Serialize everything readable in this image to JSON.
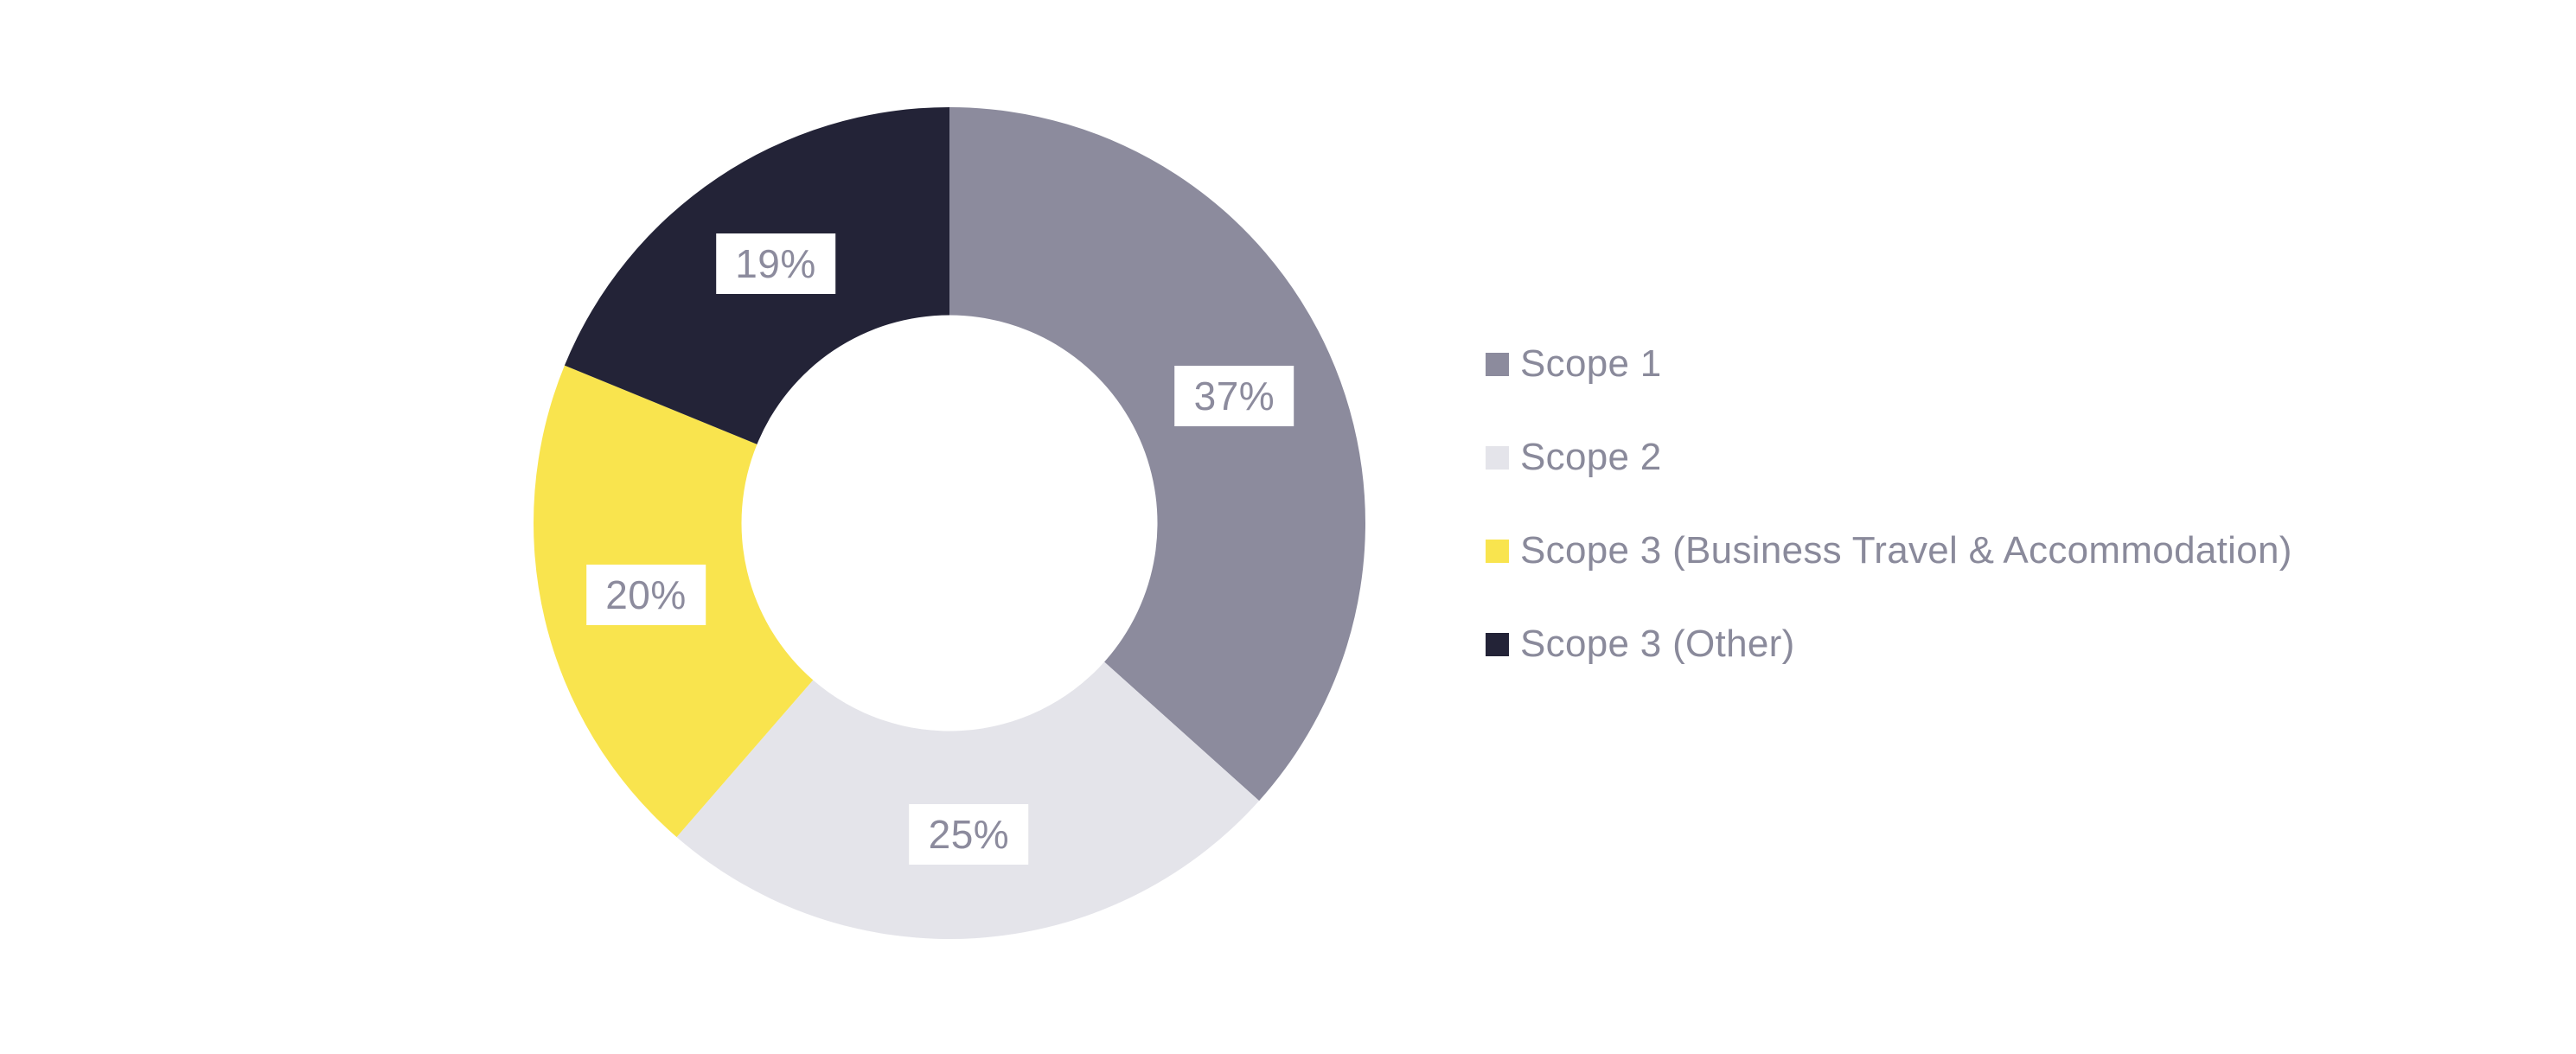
{
  "page": {
    "background_color": "#ffffff"
  },
  "chart_data": {
    "type": "pie",
    "variant": "donut",
    "title": "",
    "series": [
      {
        "label": "Scope 1",
        "value": 37,
        "display": "37%",
        "color": "#8C8B9D"
      },
      {
        "label": "Scope 2",
        "value": 25,
        "display": "25%",
        "color": "#E4E4EA"
      },
      {
        "label": "Scope 3 (Business Travel & Accommodation)",
        "value": 20,
        "display": "20%",
        "color": "#F9E44E"
      },
      {
        "label": "Scope 3 (Other)",
        "value": 19,
        "display": "19%",
        "color": "#232337"
      }
    ],
    "start_angle_deg": 0,
    "direction": "clockwise",
    "inner_radius_ratio": 0.5,
    "data_labels": {
      "shown": true,
      "text_color": "#8C8B9D",
      "background_color": "#ffffff"
    },
    "legend_position": "right",
    "legend_text_color": "#8A8A9B",
    "grid": false
  }
}
